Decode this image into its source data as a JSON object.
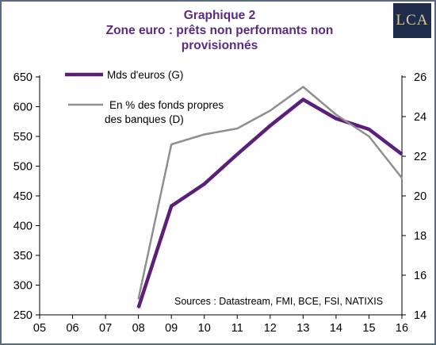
{
  "title_lines": [
    "Graphique 2",
    "Zone euro : prêts non performants non",
    "provisionnés"
  ],
  "logo": "LCA",
  "chart_data": {
    "type": "line",
    "categories": [
      "05",
      "06",
      "07",
      "08",
      "09",
      "10",
      "11",
      "12",
      "13",
      "14",
      "15",
      "16"
    ],
    "series": [
      {
        "name": "Mds d'euros (G)",
        "axis": "left",
        "color": "#5b1f7a",
        "values": [
          null,
          null,
          null,
          262,
          433,
          470,
          520,
          568,
          612,
          580,
          562,
          520
        ]
      },
      {
        "name": [
          "En % des fonds propres",
          "des banques (D)"
        ],
        "axis": "right",
        "color": "#8f8f8f",
        "values": [
          null,
          null,
          null,
          14.8,
          22.6,
          23.1,
          23.4,
          24.3,
          25.5,
          24.1,
          23.0,
          20.9
        ]
      }
    ],
    "y_left": {
      "min": 250,
      "max": 650,
      "ticks": [
        250,
        300,
        350,
        400,
        450,
        500,
        550,
        600,
        650
      ]
    },
    "y_right": {
      "min": 14,
      "max": 26,
      "ticks": [
        14,
        16,
        18,
        20,
        22,
        24,
        26
      ]
    },
    "grid": false,
    "legend_position": "top-left",
    "annotation": "Sources : Datastream, FMI, BCE, FSI, NATIXIS"
  }
}
